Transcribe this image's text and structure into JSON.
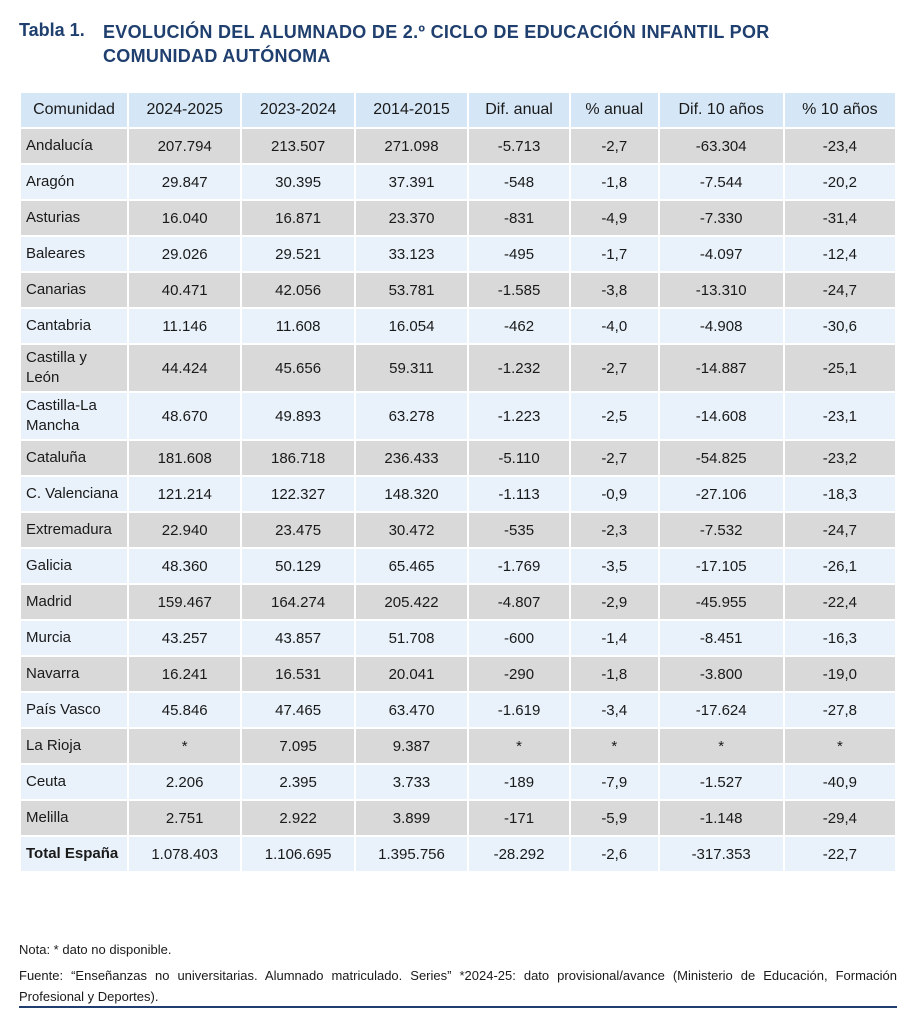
{
  "title": {
    "label": "Tabla 1.",
    "text": "EVOLUCIÓN DEL ALUMNADO DE 2.º CICLO DE EDUCACIÓN INFANTIL POR COMUNIDAD AUTÓNOMA"
  },
  "table": {
    "headers": [
      "Comunidad",
      "2024-2025",
      "2023-2024",
      "2014-2015",
      "Dif. anual",
      "% anual",
      "Dif. 10 años",
      "% 10 años"
    ],
    "rows": [
      [
        "Andalucía",
        "207.794",
        "213.507",
        "271.098",
        "-5.713",
        "-2,7",
        "-63.304",
        "-23,4"
      ],
      [
        "Aragón",
        "29.847",
        "30.395",
        "37.391",
        "-548",
        "-1,8",
        "-7.544",
        "-20,2"
      ],
      [
        "Asturias",
        "16.040",
        "16.871",
        "23.370",
        "-831",
        "-4,9",
        "-7.330",
        "-31,4"
      ],
      [
        "Baleares",
        "29.026",
        "29.521",
        "33.123",
        "-495",
        "-1,7",
        "-4.097",
        "-12,4"
      ],
      [
        "Canarias",
        "40.471",
        "42.056",
        "53.781",
        "-1.585",
        "-3,8",
        "-13.310",
        "-24,7"
      ],
      [
        "Cantabria",
        "11.146",
        "11.608",
        "16.054",
        "-462",
        "-4,0",
        "-4.908",
        "-30,6"
      ],
      [
        "Castilla y León",
        "44.424",
        "45.656",
        "59.311",
        "-1.232",
        "-2,7",
        "-14.887",
        "-25,1"
      ],
      [
        "Castilla-La Mancha",
        "48.670",
        "49.893",
        "63.278",
        "-1.223",
        "-2,5",
        "-14.608",
        "-23,1"
      ],
      [
        "Cataluña",
        "181.608",
        "186.718",
        "236.433",
        "-5.110",
        "-2,7",
        "-54.825",
        "-23,2"
      ],
      [
        "C. Valenciana",
        "121.214",
        "122.327",
        "148.320",
        "-1.113",
        "-0,9",
        "-27.106",
        "-18,3"
      ],
      [
        "Extremadura",
        "22.940",
        "23.475",
        "30.472",
        "-535",
        "-2,3",
        "-7.532",
        "-24,7"
      ],
      [
        "Galicia",
        "48.360",
        "50.129",
        "65.465",
        "-1.769",
        "-3,5",
        "-17.105",
        "-26,1"
      ],
      [
        "Madrid",
        "159.467",
        "164.274",
        "205.422",
        "-4.807",
        "-2,9",
        "-45.955",
        "-22,4"
      ],
      [
        "Murcia",
        "43.257",
        "43.857",
        "51.708",
        "-600",
        "-1,4",
        "-8.451",
        "-16,3"
      ],
      [
        "Navarra",
        "16.241",
        "16.531",
        "20.041",
        "-290",
        "-1,8",
        "-3.800",
        "-19,0"
      ],
      [
        "País Vasco",
        "45.846",
        "47.465",
        "63.470",
        "-1.619",
        "-3,4",
        "-17.624",
        "-27,8"
      ],
      [
        "La Rioja",
        "*",
        "7.095",
        "9.387",
        "*",
        "*",
        "*",
        "*"
      ],
      [
        "Ceuta",
        "2.206",
        "2.395",
        "3.733",
        "-189",
        "-7,9",
        "-1.527",
        "-40,9"
      ],
      [
        "Melilla",
        "2.751",
        "2.922",
        "3.899",
        "-171",
        "-5,9",
        "-1.148",
        "-29,4"
      ]
    ],
    "total": [
      "Total España",
      "1.078.403",
      "1.106.695",
      "1.395.756",
      "-28.292",
      "-2,6",
      "-317.353",
      "-22,7"
    ]
  },
  "notes": {
    "nota": "Nota: * dato no disponible.",
    "fuente": "Fuente: “Enseñanzas no universitarias. Alumnado matriculado. Series” *2024-25: dato provisional/avance (Ministerio de Educación, Formación Profesional y Deportes)."
  },
  "colors": {
    "title": "#1f3f6e",
    "header_bg": "#d5e6f6",
    "row_odd_bg": "#d9d9d9",
    "row_even_bg": "#e9f2fb",
    "rule": "#1f3f6e"
  }
}
